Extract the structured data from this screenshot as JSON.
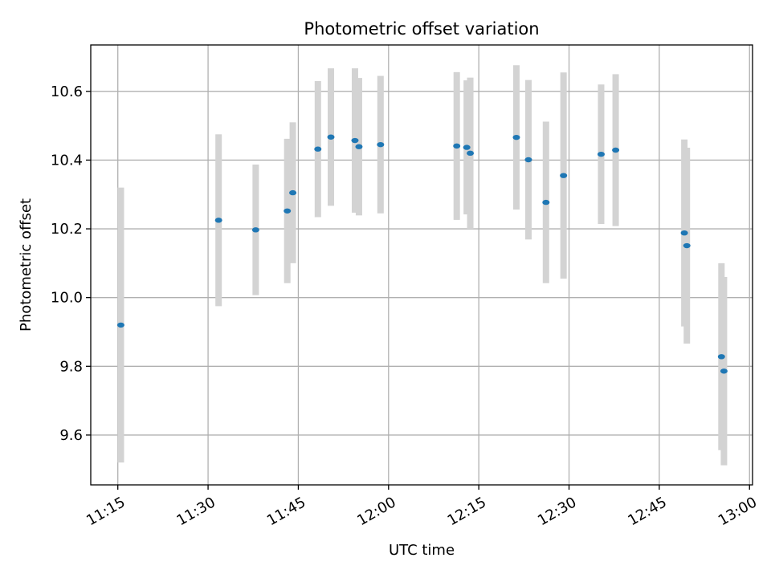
{
  "chart_data": {
    "type": "scatter",
    "title": "Photometric offset variation",
    "xlabel": "UTC time",
    "ylabel": "Photometric offset",
    "x_ticks": [
      "11:15",
      "11:30",
      "11:45",
      "12:00",
      "12:15",
      "12:30",
      "12:45",
      "13:00"
    ],
    "y_ticks": [
      9.6,
      9.8,
      10.0,
      10.2,
      10.4,
      10.6
    ],
    "xlim": [
      "11:10:30",
      "13:00:30"
    ],
    "ylim": [
      9.455,
      10.735
    ],
    "grid": true,
    "colors": {
      "points": "#1f77b4",
      "error_bars": "#d3d3d3",
      "grid": "#b0b0b0"
    },
    "series": [
      {
        "points": [
          {
            "x": "11:15:30",
            "y": 9.92,
            "err": 0.4
          },
          {
            "x": "11:31:45",
            "y": 10.225,
            "err": 0.25
          },
          {
            "x": "11:37:55",
            "y": 10.197,
            "err": 0.19
          },
          {
            "x": "11:43:10",
            "y": 10.252,
            "err": 0.21
          },
          {
            "x": "11:44:05",
            "y": 10.305,
            "err": 0.205
          },
          {
            "x": "11:48:15",
            "y": 10.432,
            "err": 0.198
          },
          {
            "x": "11:50:25",
            "y": 10.467,
            "err": 0.2
          },
          {
            "x": "11:54:25",
            "y": 10.457,
            "err": 0.21
          },
          {
            "x": "11:55:05",
            "y": 10.439,
            "err": 0.2
          },
          {
            "x": "11:58:40",
            "y": 10.445,
            "err": 0.2
          },
          {
            "x": "12:11:20",
            "y": 10.441,
            "err": 0.215
          },
          {
            "x": "12:13:00",
            "y": 10.437,
            "err": 0.195
          },
          {
            "x": "12:13:35",
            "y": 10.42,
            "err": 0.22
          },
          {
            "x": "12:21:15",
            "y": 10.466,
            "err": 0.21
          },
          {
            "x": "12:23:15",
            "y": 10.401,
            "err": 0.232
          },
          {
            "x": "12:26:10",
            "y": 10.277,
            "err": 0.235
          },
          {
            "x": "12:29:05",
            "y": 10.355,
            "err": 0.3
          },
          {
            "x": "12:35:20",
            "y": 10.417,
            "err": 0.203
          },
          {
            "x": "12:37:45",
            "y": 10.429,
            "err": 0.221
          },
          {
            "x": "12:49:10",
            "y": 10.188,
            "err": 0.272
          },
          {
            "x": "12:49:35",
            "y": 10.151,
            "err": 0.285
          },
          {
            "x": "12:55:20",
            "y": 9.828,
            "err": 0.272
          },
          {
            "x": "12:55:45",
            "y": 9.786,
            "err": 0.274
          }
        ]
      }
    ]
  }
}
